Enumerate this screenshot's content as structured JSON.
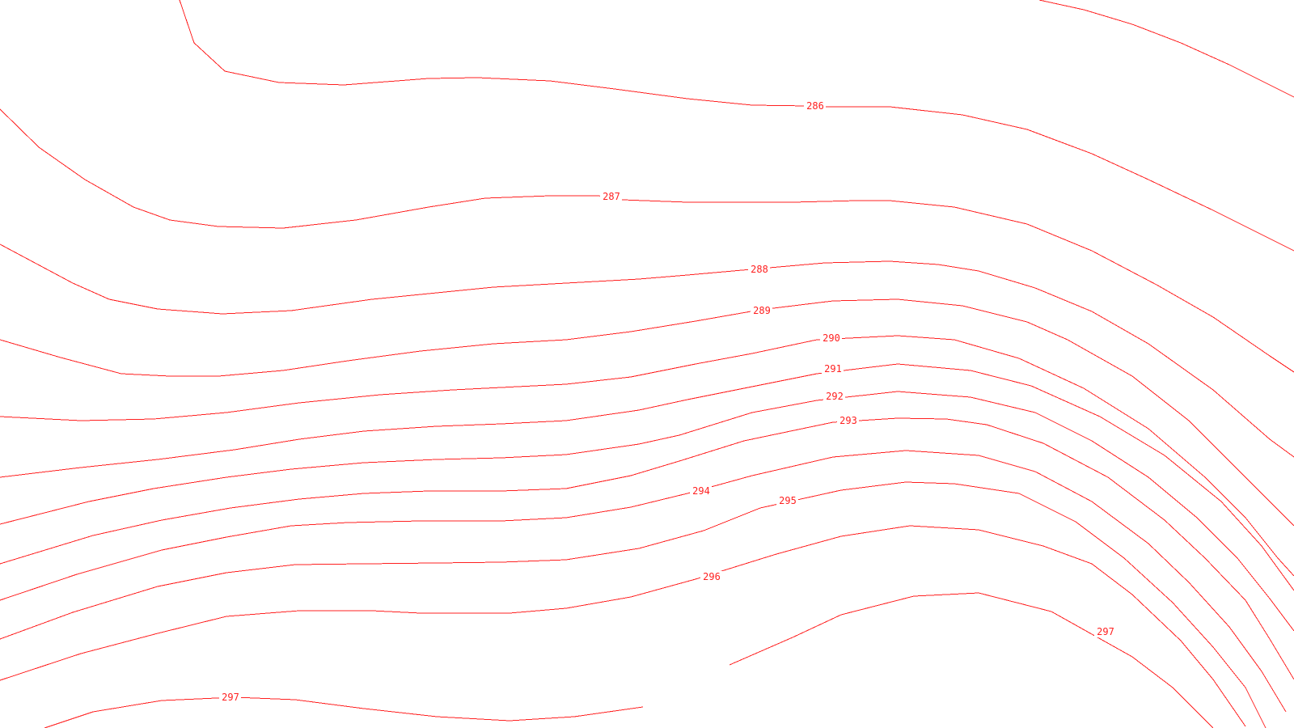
{
  "map": {
    "type": "contour-map",
    "line_color": "#ff2020",
    "background_color": "#ffffff",
    "units": "",
    "contour_labels": [
      {
        "id": "286",
        "text": "286"
      },
      {
        "id": "287",
        "text": "287"
      },
      {
        "id": "288",
        "text": "288"
      },
      {
        "id": "289",
        "text": "289"
      },
      {
        "id": "290",
        "text": "290"
      },
      {
        "id": "291",
        "text": "291"
      },
      {
        "id": "292",
        "text": "292"
      },
      {
        "id": "293",
        "text": "293"
      },
      {
        "id": "294",
        "text": "294"
      },
      {
        "id": "295",
        "text": "295"
      },
      {
        "id": "296",
        "text": "296"
      },
      {
        "id": "297a",
        "text": "297"
      },
      {
        "id": "297b",
        "text": "297"
      }
    ]
  }
}
